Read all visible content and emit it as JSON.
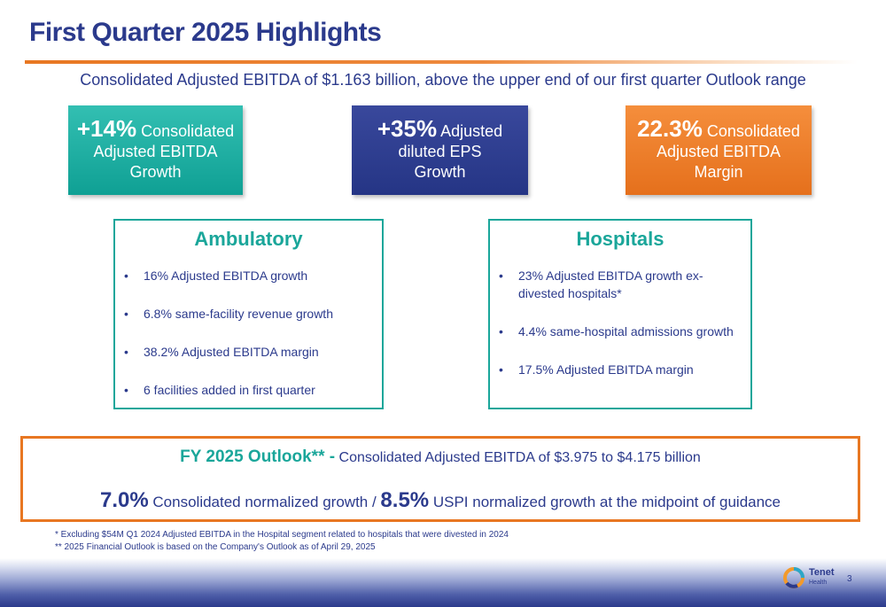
{
  "title": "First Quarter 2025 Highlights",
  "subtitle": "Consolidated Adjusted EBITDA of $1.163 billion, above the upper end of our first quarter Outlook range",
  "kpis": [
    {
      "big": "+14%",
      "line1": " Consolidated",
      "line2": "Adjusted EBITDA",
      "line3": "Growth"
    },
    {
      "big": "+35%",
      "line1": " Adjusted",
      "line2": "diluted EPS",
      "line3": "Growth"
    },
    {
      "big": "22.3%",
      "line1": " Consolidated",
      "line2": "Adjusted EBITDA",
      "line3": "Margin"
    }
  ],
  "ambulatory": {
    "title": "Ambulatory",
    "bullet": "•",
    "items": [
      "16% Adjusted EBITDA growth",
      "6.8% same-facility revenue growth",
      "38.2% Adjusted EBITDA margin",
      "6 facilities added in first quarter"
    ]
  },
  "hospitals": {
    "title": "Hospitals",
    "bullet": "•",
    "items": [
      "23% Adjusted EBITDA growth ex-divested hospitals*",
      "4.4% same-hospital admissions growth",
      "17.5% Adjusted EBITDA margin"
    ]
  },
  "outlook": {
    "label": "FY 2025 Outlook** -",
    "text": " Consolidated Adjusted EBITDA of $3.975 to $4.175 billion",
    "pct1": "7.0%",
    "text2": " Consolidated normalized growth / ",
    "pct2": "8.5%",
    "text3": " USPI normalized growth at the midpoint of guidance"
  },
  "footnotes": [
    "* Excluding $54M Q1 2024 Adjusted EBITDA in the Hospital segment related to hospitals that were divested in 2024",
    "** 2025 Financial Outlook is based on the Company's Outlook as of April 29, 2025"
  ],
  "logo": {
    "name": "Tenet",
    "sub": "Health"
  },
  "page_number": "3",
  "colors": {
    "navy": "#2b3a8c",
    "teal": "#1aa69a",
    "orange": "#e87722"
  }
}
